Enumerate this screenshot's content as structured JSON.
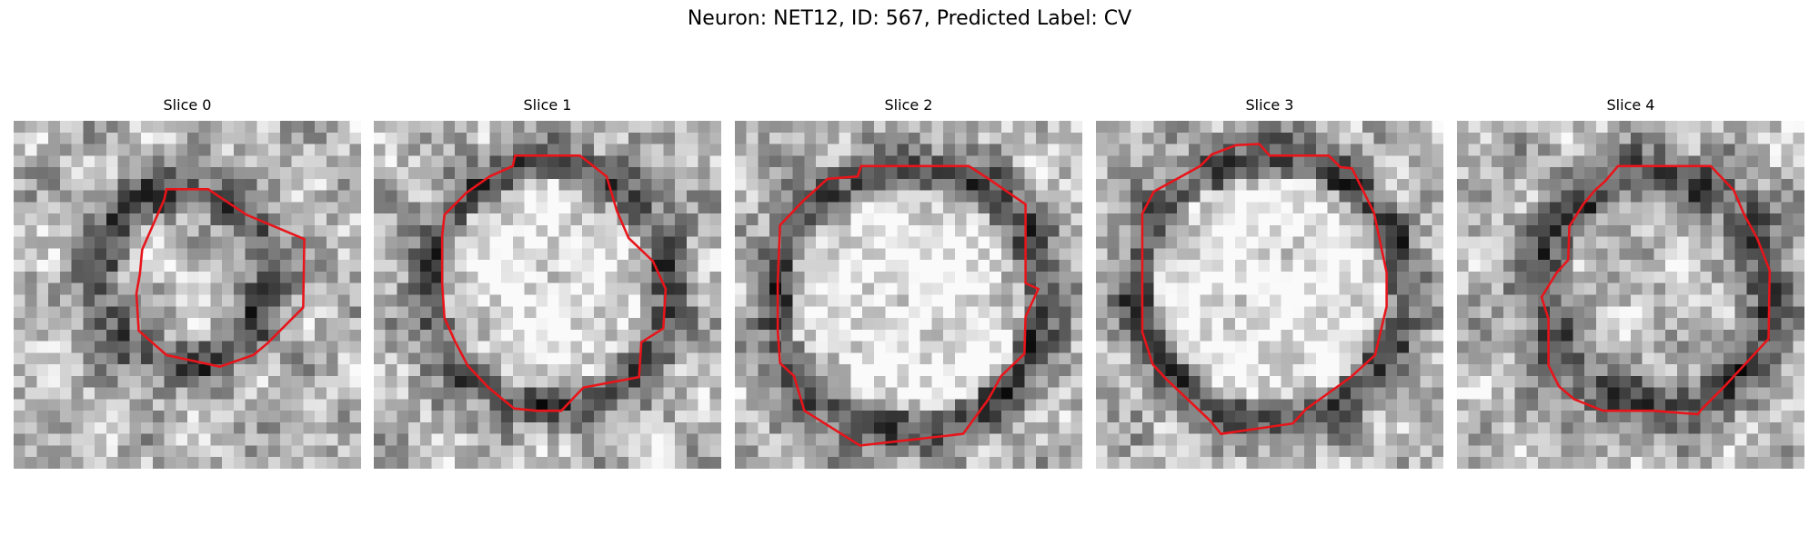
{
  "figure": {
    "title": "Neuron: NET12, ID: 567, Predicted Label: CV"
  },
  "panels": [
    {
      "title": "Slice 0",
      "pattern_seed": 11,
      "contour_color": "#e8141a"
    },
    {
      "title": "Slice 1",
      "pattern_seed": 23,
      "contour_color": "#e8141a"
    },
    {
      "title": "Slice 2",
      "pattern_seed": 37,
      "contour_color": "#e8141a"
    },
    {
      "title": "Slice 3",
      "pattern_seed": 53,
      "contour_color": "#e8141a"
    },
    {
      "title": "Slice 4",
      "pattern_seed": 71,
      "contour_color": "#e8141a"
    }
  ]
}
